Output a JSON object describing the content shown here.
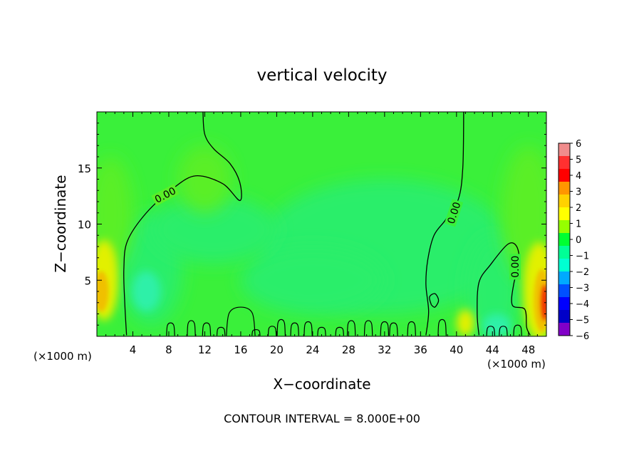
{
  "chart_data": {
    "type": "heatmap",
    "title": "vertical velocity",
    "xlabel": "X−coordinate",
    "ylabel": "Z−coordinate",
    "x_unit_left": "(×1000 m)",
    "x_unit_right": "(×1000 m)",
    "xlim": [
      0,
      50
    ],
    "ylim": [
      0,
      20
    ],
    "x_ticks": [
      4,
      8,
      12,
      16,
      20,
      24,
      28,
      32,
      36,
      40,
      44,
      48
    ],
    "y_ticks": [
      5,
      10,
      15
    ],
    "x_tick_labels": [
      "4",
      "8",
      "12",
      "16",
      "20",
      "24",
      "28",
      "32",
      "36",
      "40",
      "44",
      "48"
    ],
    "y_tick_labels": [
      "5",
      "10",
      "15"
    ],
    "contour_labels": [
      "0.00",
      "0.00",
      "0.00"
    ],
    "contour_label_positions": [
      {
        "x": 7.6,
        "y": 12.6
      },
      {
        "x": 39.7,
        "y": 11.0
      },
      {
        "x": 46.5,
        "y": 6.2
      }
    ],
    "zero_contour_paths": [
      [
        [
          3.3,
          0.1
        ],
        [
          3.1,
          3.0
        ],
        [
          3.0,
          6.0
        ],
        [
          3.4,
          8.5
        ],
        [
          5.5,
          11.0
        ],
        [
          8.5,
          13.2
        ],
        [
          11.0,
          14.3
        ],
        [
          14.0,
          13.6
        ],
        [
          15.9,
          12.1
        ],
        [
          15.9,
          13.7
        ],
        [
          14.8,
          15.4
        ],
        [
          13.0,
          16.7
        ],
        [
          12.0,
          18.0
        ],
        [
          11.8,
          20.0
        ]
      ],
      [
        [
          40.8,
          20.0
        ],
        [
          40.7,
          15.0
        ],
        [
          40.2,
          12.2
        ],
        [
          38.8,
          10.4
        ],
        [
          37.5,
          9.0
        ],
        [
          36.8,
          6.8
        ],
        [
          36.6,
          4.6
        ],
        [
          36.9,
          2.2
        ],
        [
          36.6,
          0.1
        ]
      ],
      [
        [
          42.5,
          0.1
        ],
        [
          42.3,
          2.0
        ],
        [
          42.5,
          4.8
        ],
        [
          43.8,
          6.4
        ],
        [
          45.7,
          8.2
        ],
        [
          46.7,
          8.0
        ],
        [
          47.0,
          6.4
        ],
        [
          46.4,
          4.8
        ],
        [
          46.2,
          2.8
        ],
        [
          47.6,
          2.4
        ],
        [
          47.8,
          0.8
        ],
        [
          48.2,
          0.1
        ]
      ]
    ],
    "colorbar": {
      "min": -6,
      "max": 6,
      "labels": [
        "6",
        "5",
        "4",
        "3",
        "2",
        "1",
        "0",
        "−1",
        "−2",
        "−3",
        "−4",
        "−5",
        "−6"
      ],
      "colors": [
        "#f08c8c",
        "#ff3030",
        "#ff0000",
        "#ff9600",
        "#ffd200",
        "#ffff00",
        "#96ff00",
        "#00ff32",
        "#00ff96",
        "#00ffd2",
        "#00aaff",
        "#0050ff",
        "#0000ff",
        "#0000c8",
        "#8200c8"
      ]
    },
    "field_colors": {
      "background": "#3af03a",
      "slight_positive": "#5aef28",
      "slight_negative": "#2aee6a",
      "downdraft": "#2ef0a8",
      "updraft_weak": "#e2f000",
      "updraft_mid": "#f0c000",
      "updraft_strong": "#f03000"
    },
    "grid": false,
    "legend": "colorbar-right"
  },
  "footer": {
    "contour_interval": "CONTOUR INTERVAL = 8.000E+00"
  }
}
